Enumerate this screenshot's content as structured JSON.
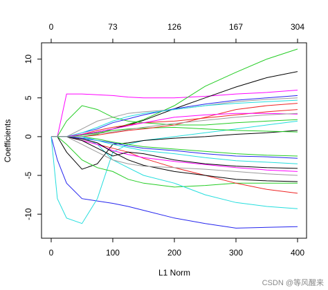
{
  "chart_data": {
    "type": "line",
    "x_label": "L1 Norm",
    "y_label": "Coefficients",
    "watermark": "CSDN @等风醒来",
    "xlim": [
      -15.7,
      414.6
    ],
    "ylim": [
      -13.1,
      12.1
    ],
    "xticks": [
      0,
      100,
      200,
      300,
      400
    ],
    "yticks": [
      -10,
      -5,
      0,
      5,
      10
    ],
    "x2ticks": [
      {
        "value": 0,
        "label": "0"
      },
      {
        "value": 100,
        "label": "73"
      },
      {
        "value": 200,
        "label": "126"
      },
      {
        "value": 300,
        "label": "167"
      },
      {
        "value": 400,
        "label": "304"
      }
    ],
    "grid": false,
    "x": [
      0,
      10,
      25,
      50,
      75,
      100,
      125,
      150,
      200,
      250,
      300,
      350,
      400
    ],
    "series": [
      {
        "color": "#ff00ff",
        "values": [
          0,
          0,
          5.5,
          5.5,
          5.4,
          5.3,
          5.1,
          5,
          5,
          5.2,
          5.5,
          5.7,
          6
        ]
      },
      {
        "color": "#22cc22",
        "values": [
          0,
          0,
          0,
          0,
          0.3,
          1,
          1.6,
          2.2,
          4,
          6.5,
          8.3,
          10,
          11.3
        ]
      },
      {
        "color": "#000000",
        "values": [
          0,
          0,
          0,
          0.2,
          0.6,
          1,
          1.5,
          2.1,
          3.6,
          5,
          6.4,
          7.6,
          8.4
        ]
      },
      {
        "color": "#2222ee",
        "values": [
          0,
          -3,
          -6,
          -8,
          -8.3,
          -8.6,
          -9,
          -9.5,
          -10.5,
          -11.2,
          -11.8,
          -11.7,
          -11.6
        ]
      },
      {
        "color": "#22dddd",
        "values": [
          0,
          -8,
          -10.5,
          -11.2,
          -8,
          -2,
          -1,
          -0.5,
          0,
          0.5,
          1,
          1.5,
          2
        ]
      },
      {
        "color": "#000000",
        "values": [
          0,
          0,
          -2,
          -4.2,
          -3.5,
          -1,
          -0.8,
          -0.5,
          -0.2,
          0,
          0.3,
          0.5,
          0.8
        ]
      },
      {
        "color": "#22cc22",
        "values": [
          0,
          0,
          -1,
          -3,
          -4,
          -4.5,
          -5.5,
          -6,
          -6.5,
          -6.3,
          -6,
          -6,
          -6
        ]
      },
      {
        "color": "#ee2222",
        "values": [
          0,
          0,
          0,
          -0.5,
          -1,
          -1.5,
          -2,
          -2.8,
          -4,
          -5,
          -6,
          -6.8,
          -7.3
        ]
      },
      {
        "color": "#22dddd",
        "values": [
          0,
          0,
          0,
          0,
          -1,
          -3,
          -4,
          -5,
          -6,
          -7.5,
          -8.5,
          -9,
          -9.3
        ]
      },
      {
        "color": "#999999",
        "values": [
          0,
          0,
          0,
          1,
          2,
          2.5,
          3,
          3.2,
          3.5,
          4,
          4.5,
          4.8,
          5
        ]
      },
      {
        "color": "#22cc22",
        "values": [
          0,
          0,
          2,
          4,
          3.5,
          2.5,
          2,
          1.8,
          1.5,
          1.5,
          1.8,
          2,
          2.2
        ]
      },
      {
        "color": "#2222ee",
        "values": [
          0,
          0,
          0,
          0.5,
          1,
          1.8,
          2.3,
          2.8,
          3.6,
          4.2,
          4.7,
          5,
          5.3
        ]
      },
      {
        "color": "#ee2222",
        "values": [
          0,
          0,
          0,
          0.3,
          0.8,
          1.2,
          1.5,
          1.8,
          2,
          2.4,
          2.8,
          3.2,
          3.5
        ]
      },
      {
        "color": "#ff00ff",
        "values": [
          0,
          0,
          0,
          -0.5,
          -1,
          -1.8,
          -2.3,
          -2.7,
          -3.2,
          -3.6,
          -4,
          -4.3,
          -4.5
        ]
      },
      {
        "color": "#000000",
        "values": [
          0,
          0,
          0,
          -0.3,
          -0.8,
          -2,
          -3,
          -3.7,
          -4.5,
          -5,
          -5.5,
          -5.7,
          -5.8
        ]
      },
      {
        "color": "#22dddd",
        "values": [
          0,
          0,
          0,
          0.5,
          1.2,
          2,
          2.6,
          3,
          3.5,
          4,
          4.3,
          4.5,
          4.7
        ]
      },
      {
        "color": "#999999",
        "values": [
          0,
          0,
          0,
          -1,
          -2,
          -3,
          -3.5,
          -3.8,
          -4,
          -4.2,
          -4.5,
          -4.8,
          -5
        ]
      },
      {
        "color": "#22cc22",
        "values": [
          0,
          0,
          0,
          0.2,
          0.5,
          0.8,
          1,
          1.1,
          1.2,
          1,
          0.8,
          0.7,
          0.6
        ]
      },
      {
        "color": "#2222ee",
        "values": [
          0,
          0,
          0,
          -0.2,
          -0.5,
          -0.8,
          -1.2,
          -1.5,
          -1.8,
          -2.2,
          -2.5,
          -2.6,
          -2.8
        ]
      },
      {
        "color": "#ee2222",
        "values": [
          0,
          0,
          0,
          0,
          0.2,
          0.5,
          0.8,
          1,
          1.5,
          2.5,
          3.5,
          4,
          4.3
        ]
      },
      {
        "color": "#000000",
        "values": [
          0,
          0,
          0,
          -0.5,
          -1.5,
          -2.5,
          -2,
          -2.2,
          -3,
          -3.5,
          -3.8,
          -4,
          -4.1
        ]
      },
      {
        "color": "#ff00ff",
        "values": [
          0,
          0,
          0,
          0.3,
          0.6,
          1,
          1.4,
          1.8,
          2.5,
          2.8,
          3,
          3,
          2.9
        ]
      },
      {
        "color": "#22cc22",
        "values": [
          0,
          0,
          0,
          0,
          -0.3,
          -0.7,
          -1,
          -1.3,
          -1.6,
          -1.9,
          -2.2,
          -2.4,
          -2.5
        ]
      },
      {
        "color": "#22dddd",
        "values": [
          0,
          0,
          0,
          0,
          -0.5,
          -1,
          -1.4,
          -1.8,
          -2.2,
          -2.7,
          -3.1,
          -3.3,
          -3.5
        ]
      },
      {
        "color": "#999999",
        "values": [
          0,
          0,
          0,
          0,
          0.4,
          0.6,
          0.9,
          1.2,
          1.7,
          2.1,
          2.5,
          2.8,
          3
        ]
      }
    ]
  }
}
